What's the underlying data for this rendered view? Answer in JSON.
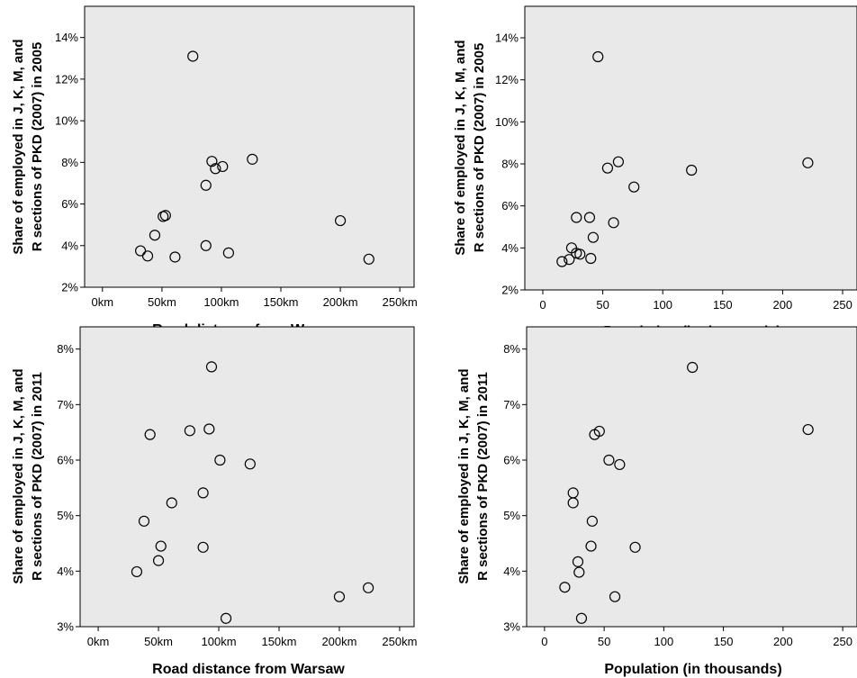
{
  "chart_data": [
    {
      "type": "scatter",
      "xlabel": "Road distance from Warsaw",
      "ylabel": [
        "Share of employed in J, K, M, and",
        "R sections of PKD (2007) in 2005"
      ],
      "x_ticks": [
        0,
        50,
        100,
        150,
        200,
        250
      ],
      "x_tick_labels": [
        "0km",
        "50km",
        "100km",
        "150km",
        "200km",
        "250km"
      ],
      "y_ticks": [
        2,
        4,
        6,
        8,
        10,
        12,
        14
      ],
      "y_tick_labels": [
        "2%",
        "4%",
        "6%",
        "8%",
        "10%",
        "12%",
        "14%"
      ],
      "xlim": [
        -15,
        262
      ],
      "ylim": [
        2,
        15.5
      ],
      "grid": false,
      "points": [
        {
          "x": 76,
          "y": 13.1
        },
        {
          "x": 92,
          "y": 8.05
        },
        {
          "x": 95,
          "y": 7.7
        },
        {
          "x": 101,
          "y": 7.8
        },
        {
          "x": 126,
          "y": 8.15
        },
        {
          "x": 87,
          "y": 6.9
        },
        {
          "x": 51,
          "y": 5.4
        },
        {
          "x": 53,
          "y": 5.45
        },
        {
          "x": 44,
          "y": 4.5
        },
        {
          "x": 87,
          "y": 4.0
        },
        {
          "x": 32,
          "y": 3.75
        },
        {
          "x": 38,
          "y": 3.5
        },
        {
          "x": 61,
          "y": 3.45
        },
        {
          "x": 106,
          "y": 3.65
        },
        {
          "x": 200,
          "y": 5.2
        },
        {
          "x": 224,
          "y": 3.35
        }
      ]
    },
    {
      "type": "scatter",
      "xlabel": "Population (in thousands)",
      "ylabel": [
        "Share of employed in J, K, M, and",
        "R sections of PKD (2007) in 2005"
      ],
      "x_ticks": [
        0,
        50,
        100,
        150,
        200,
        250
      ],
      "x_tick_labels": [
        "0",
        "50",
        "100",
        "150",
        "200",
        "250"
      ],
      "y_ticks": [
        2,
        4,
        6,
        8,
        10,
        12,
        14
      ],
      "y_tick_labels": [
        "2%",
        "4%",
        "6%",
        "8%",
        "10%",
        "12%",
        "14%"
      ],
      "xlim": [
        -15,
        262
      ],
      "ylim": [
        2,
        15.5
      ],
      "grid": false,
      "points": [
        {
          "x": 46,
          "y": 13.1
        },
        {
          "x": 54,
          "y": 7.8
        },
        {
          "x": 63,
          "y": 8.1
        },
        {
          "x": 124,
          "y": 7.7
        },
        {
          "x": 221,
          "y": 8.05
        },
        {
          "x": 76,
          "y": 6.9
        },
        {
          "x": 28,
          "y": 5.45
        },
        {
          "x": 39,
          "y": 5.45
        },
        {
          "x": 59,
          "y": 5.2
        },
        {
          "x": 42,
          "y": 4.5
        },
        {
          "x": 24,
          "y": 4.0
        },
        {
          "x": 28,
          "y": 3.75
        },
        {
          "x": 31,
          "y": 3.7
        },
        {
          "x": 22,
          "y": 3.45
        },
        {
          "x": 16,
          "y": 3.35
        },
        {
          "x": 40,
          "y": 3.5
        }
      ]
    },
    {
      "type": "scatter",
      "xlabel": "Road distance from Warsaw",
      "ylabel": [
        "Share of employed in J, K, M, and",
        "R sections of PKD (2007) in 2011"
      ],
      "x_ticks": [
        0,
        50,
        100,
        150,
        200,
        250
      ],
      "x_tick_labels": [
        "0km",
        "50km",
        "100km",
        "150km",
        "200km",
        "250km"
      ],
      "y_ticks": [
        3,
        4,
        5,
        6,
        7,
        8
      ],
      "y_tick_labels": [
        "3%",
        "4%",
        "5%",
        "6%",
        "7%",
        "8%"
      ],
      "xlim": [
        -15,
        262
      ],
      "ylim": [
        3,
        8.4
      ],
      "grid": false,
      "points": [
        {
          "x": 94,
          "y": 7.68
        },
        {
          "x": 43,
          "y": 6.46
        },
        {
          "x": 76,
          "y": 6.53
        },
        {
          "x": 92,
          "y": 6.56
        },
        {
          "x": 101,
          "y": 6.0
        },
        {
          "x": 126,
          "y": 5.93
        },
        {
          "x": 61,
          "y": 5.23
        },
        {
          "x": 87,
          "y": 5.41
        },
        {
          "x": 38,
          "y": 4.9
        },
        {
          "x": 52,
          "y": 4.45
        },
        {
          "x": 87,
          "y": 4.43
        },
        {
          "x": 50,
          "y": 4.19
        },
        {
          "x": 32,
          "y": 3.99
        },
        {
          "x": 106,
          "y": 3.15
        },
        {
          "x": 200,
          "y": 3.54
        },
        {
          "x": 224,
          "y": 3.7
        }
      ]
    },
    {
      "type": "scatter",
      "xlabel": "Population (in thousands)",
      "ylabel": [
        "Share of employed in J, K, M, and",
        "R sections of PKD (2007) in 2011"
      ],
      "x_ticks": [
        0,
        50,
        100,
        150,
        200,
        250
      ],
      "x_tick_labels": [
        "0",
        "50",
        "100",
        "150",
        "200",
        "250"
      ],
      "y_ticks": [
        3,
        4,
        5,
        6,
        7,
        8
      ],
      "y_tick_labels": [
        "3%",
        "4%",
        "5%",
        "6%",
        "7%",
        "8%"
      ],
      "xlim": [
        -15,
        262
      ],
      "ylim": [
        3,
        8.4
      ],
      "grid": false,
      "points": [
        {
          "x": 124,
          "y": 7.67
        },
        {
          "x": 221,
          "y": 6.55
        },
        {
          "x": 42,
          "y": 6.46
        },
        {
          "x": 46,
          "y": 6.52
        },
        {
          "x": 54,
          "y": 6.0
        },
        {
          "x": 63,
          "y": 5.92
        },
        {
          "x": 24,
          "y": 5.41
        },
        {
          "x": 24,
          "y": 5.23
        },
        {
          "x": 40,
          "y": 4.9
        },
        {
          "x": 39,
          "y": 4.45
        },
        {
          "x": 76,
          "y": 4.43
        },
        {
          "x": 28,
          "y": 4.17
        },
        {
          "x": 29,
          "y": 3.98
        },
        {
          "x": 17,
          "y": 3.71
        },
        {
          "x": 59,
          "y": 3.54
        },
        {
          "x": 31,
          "y": 3.15
        }
      ]
    }
  ]
}
